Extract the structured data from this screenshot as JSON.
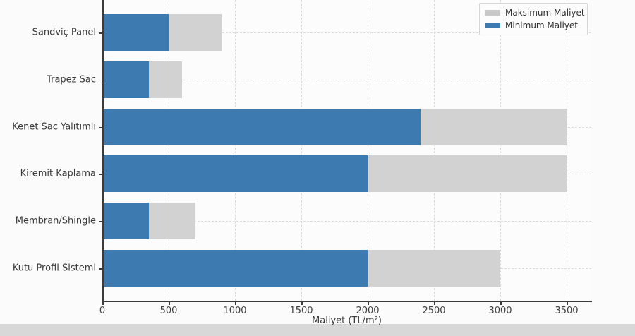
{
  "chart_data": {
    "type": "bar",
    "orientation": "horizontal",
    "title": "",
    "xlabel": "Maliyet (TL/m²)",
    "ylabel": "",
    "categories": [
      "Sandviç Panel",
      "Trapez Sac",
      "Kenet Sac Yalıtımlı",
      "Kiremit Kaplama",
      "Membran/Shingle",
      "Kutu Profil Sistemi"
    ],
    "series": [
      {
        "name": "Maksimum Maliyet",
        "color": "#d2d2d2",
        "values": [
          900,
          600,
          3500,
          3500,
          700,
          3000
        ]
      },
      {
        "name": "Minimum Maliyet",
        "color": "#3d7aaf",
        "values": [
          500,
          350,
          2400,
          2000,
          350,
          2000
        ]
      }
    ],
    "xlim": [
      0,
      3686
    ],
    "xticks": [
      0,
      500,
      1000,
      1500,
      2000,
      2500,
      3000,
      3500
    ],
    "grid": "dashed",
    "legend_position": "upper-right"
  },
  "colors": {
    "min_bar": "#3d7aaf",
    "max_bar": "#d2d2d2",
    "background": "#fbfbfb",
    "bottom_band": "#d8d8d8",
    "spine": "#3b3b3b"
  }
}
